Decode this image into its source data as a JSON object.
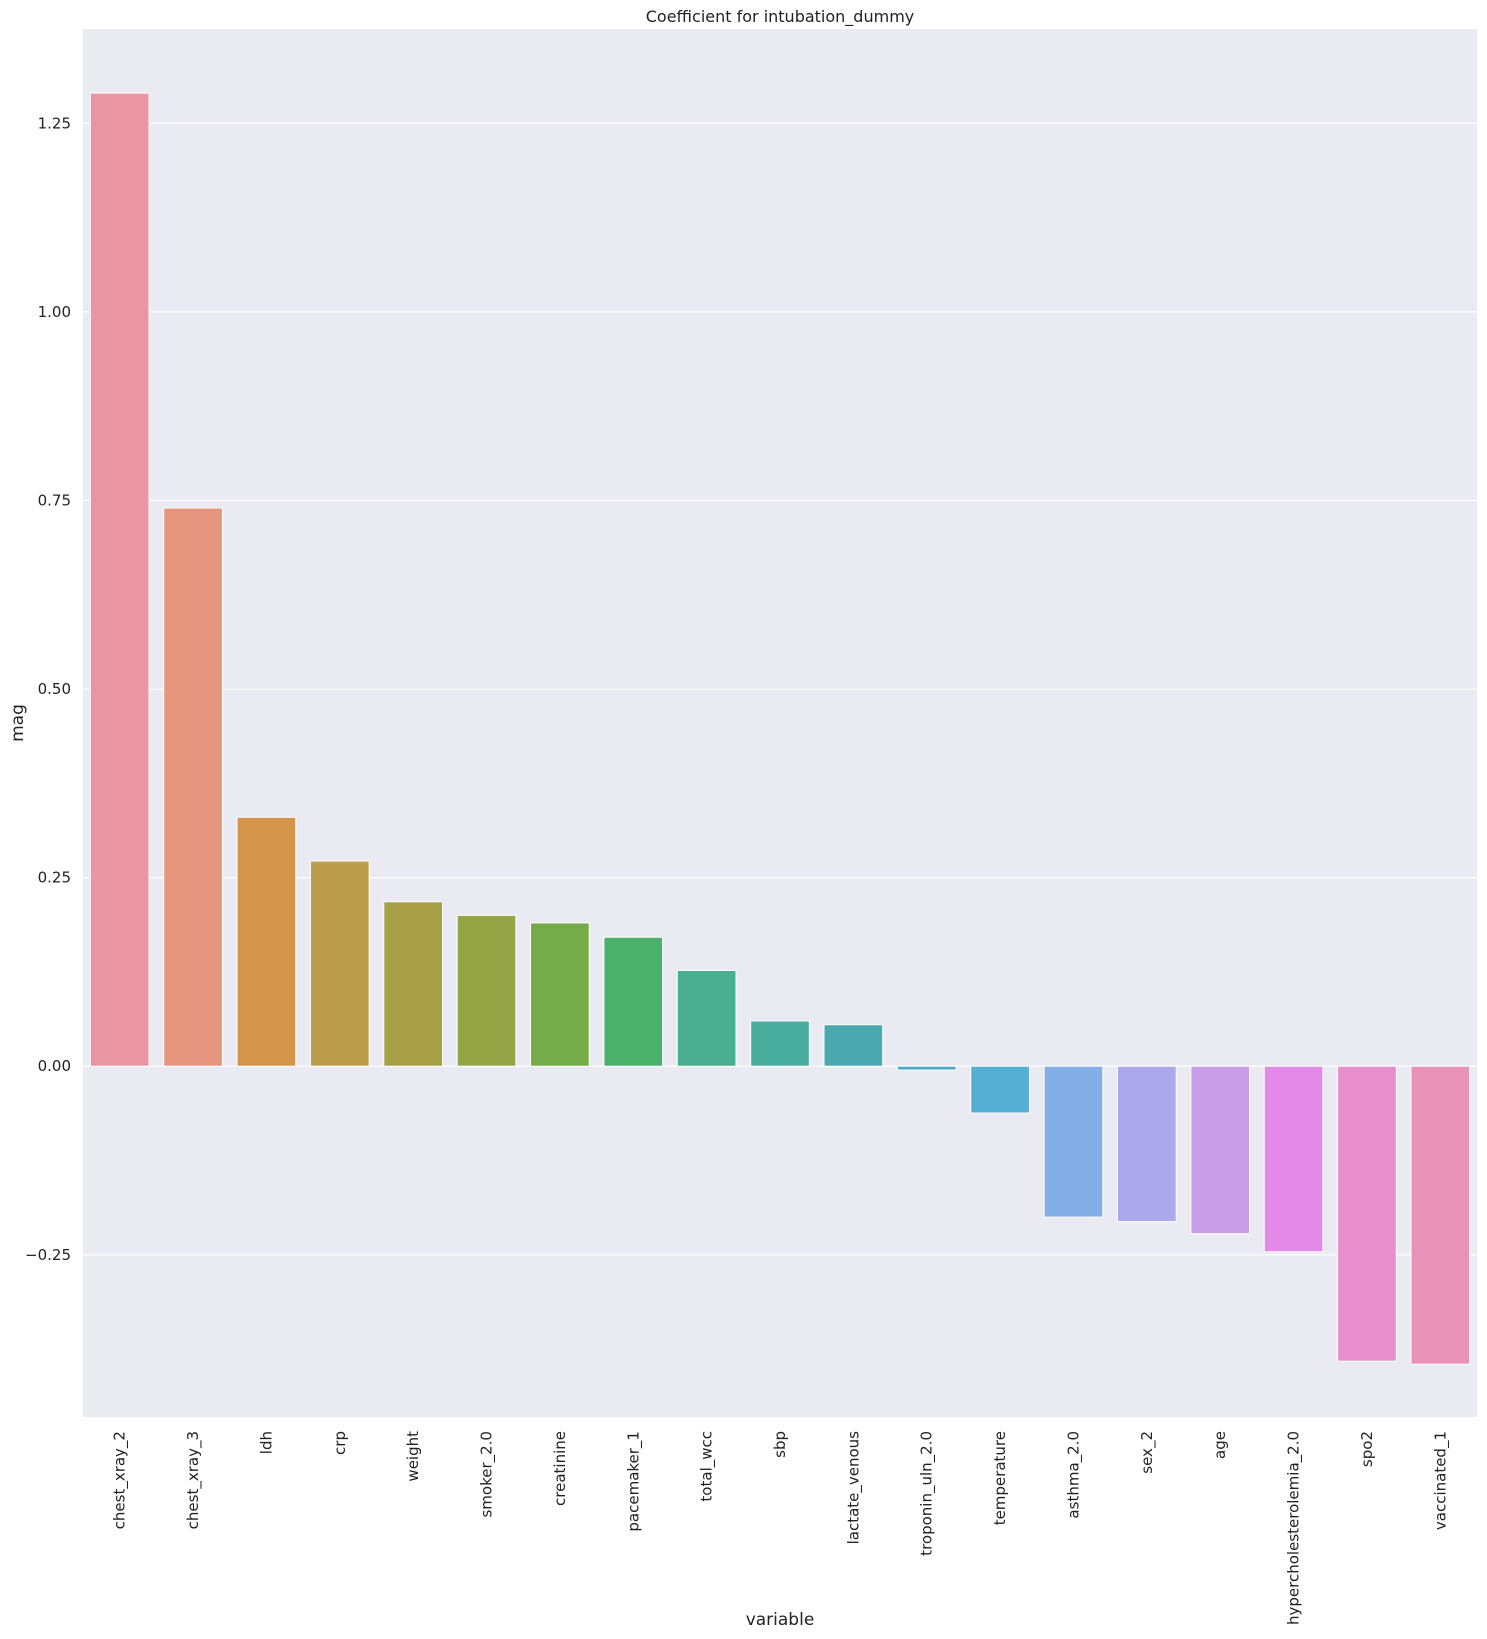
{
  "chart_data": {
    "type": "bar",
    "title": "Coefficient for intubation_dummy",
    "xlabel": "variable",
    "ylabel": "mag",
    "categories": [
      "chest_xray_2",
      "chest_xray_3",
      "ldh",
      "crp",
      "weight",
      "smoker_2.0",
      "creatinine",
      "pacemaker_1",
      "total_wcc",
      "sbp",
      "lactate_venous",
      "troponin_uln_2.0",
      "temperature",
      "asthma_2.0",
      "sex_2",
      "age",
      "hypercholesterolemia_2.0",
      "spo2",
      "vaccinated_1"
    ],
    "values": [
      1.29,
      0.74,
      0.33,
      0.272,
      0.218,
      0.2,
      0.19,
      0.171,
      0.127,
      0.06,
      0.055,
      -0.005,
      -0.062,
      -0.2,
      -0.206,
      -0.222,
      -0.246,
      -0.391,
      -0.395
    ],
    "colors": [
      "#e995a3",
      "#e6967e",
      "#d3954b",
      "#bb9d4b",
      "#a7a046",
      "#95a545",
      "#74ac4a",
      "#4bb16d",
      "#4aaf8e",
      "#4aae9e",
      "#4baab0",
      "#4aaac3",
      "#55aed4",
      "#84aee6",
      "#aba8eb",
      "#c99ee8",
      "#e38ae8",
      "#e78ecd",
      "#e892b8"
    ],
    "ylim": [
      -0.465,
      1.375
    ],
    "yticks": [
      -0.25,
      0.0,
      0.25,
      0.5,
      0.75,
      1.0,
      1.25
    ],
    "ytick_labels": [
      "−0.25",
      "0.00",
      "0.25",
      "0.50",
      "0.75",
      "1.00",
      "1.25"
    ],
    "grid": true,
    "legend": "none"
  }
}
